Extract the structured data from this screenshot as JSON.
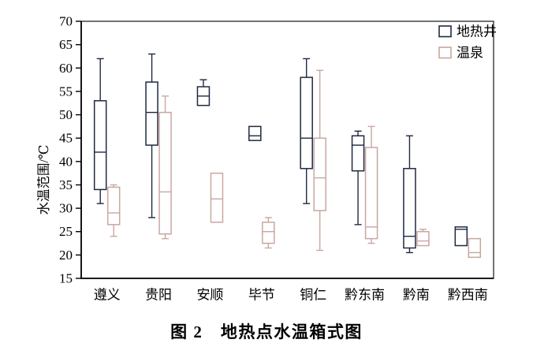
{
  "figure": {
    "caption": "图 2　地热点水温箱式图"
  },
  "chart_data": {
    "type": "boxplot",
    "title": "图 2　地热点水温箱式图",
    "ylabel": "水温范围/℃",
    "xlabel": "",
    "ylim": [
      15,
      70
    ],
    "yticks": [
      15,
      20,
      25,
      30,
      35,
      40,
      45,
      50,
      55,
      60,
      65,
      70
    ],
    "grid": false,
    "legend_position": "top-right-inside",
    "categories": [
      "遵义",
      "贵阳",
      "安顺",
      "毕节",
      "铜仁",
      "黔东南",
      "黔南",
      "黔西南"
    ],
    "series": [
      {
        "name": "地热井",
        "color": "#1f2a40",
        "boxes": [
          {
            "min": 31,
            "q1": 34,
            "med": 42,
            "q3": 53,
            "max": 62
          },
          {
            "min": 28,
            "q1": 43.5,
            "med": 50.5,
            "q3": 57,
            "max": 63
          },
          {
            "min": null,
            "q1": 52,
            "med": 54,
            "q3": 56,
            "max": 57.5
          },
          {
            "min": null,
            "q1": 44.5,
            "med": 45.5,
            "q3": 47.5,
            "max": null
          },
          {
            "min": 31,
            "q1": 38.5,
            "med": 45,
            "q3": 58,
            "max": 62
          },
          {
            "min": 26.5,
            "q1": 38,
            "med": 43.5,
            "q3": 45.5,
            "max": 46.5
          },
          {
            "min": 20.5,
            "q1": 21.5,
            "med": 24,
            "q3": 38.5,
            "max": 45.5
          },
          {
            "min": null,
            "q1": 22,
            "med": 25.5,
            "q3": 26,
            "max": null
          }
        ]
      },
      {
        "name": "温泉",
        "color": "#c8a7a0",
        "boxes": [
          {
            "min": 24,
            "q1": 26.5,
            "med": 29,
            "q3": 34.5,
            "max": 35
          },
          {
            "min": 23.5,
            "q1": 24.5,
            "med": 33.5,
            "q3": 50.5,
            "max": 54
          },
          {
            "min": null,
            "q1": 27,
            "med": 32,
            "q3": 37.5,
            "max": null
          },
          {
            "min": 21.5,
            "q1": 22.5,
            "med": 25,
            "q3": 27,
            "max": 28
          },
          {
            "min": 21,
            "q1": 29.5,
            "med": 36.5,
            "q3": 45,
            "max": 59.5
          },
          {
            "min": 22.5,
            "q1": 23.5,
            "med": 26,
            "q3": 43,
            "max": 47.5
          },
          {
            "min": null,
            "q1": 22,
            "med": 23,
            "q3": 25,
            "max": 25.5
          },
          {
            "min": null,
            "q1": 19.5,
            "med": 20.5,
            "q3": 23.5,
            "max": null
          }
        ]
      }
    ]
  }
}
